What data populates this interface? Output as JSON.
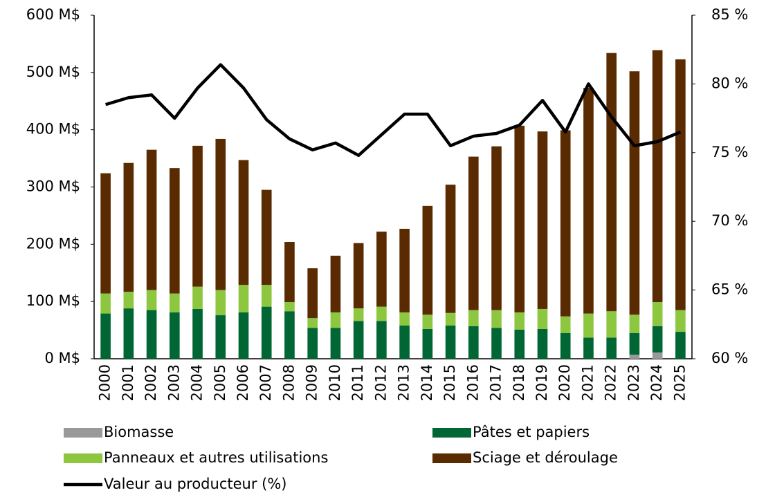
{
  "chart_data": {
    "type": "bar",
    "stacked": true,
    "categories": [
      "2000",
      "2001",
      "2002",
      "2003",
      "2004",
      "2005",
      "2006",
      "2007",
      "2008",
      "2009",
      "2010",
      "2011",
      "2012",
      "2013",
      "2014",
      "2015",
      "2016",
      "2017",
      "2018",
      "2019",
      "2020",
      "2021",
      "2022",
      "2023",
      "2024",
      "2025"
    ],
    "series": [
      {
        "name": "Biomasse",
        "color": "#999999",
        "values": [
          0,
          0,
          0,
          0,
          0,
          0,
          0,
          0,
          0,
          0,
          0,
          0,
          0,
          0,
          0,
          0,
          0,
          0,
          0,
          0,
          0,
          0,
          0,
          7,
          11,
          0
        ]
      },
      {
        "name": "Pâtes et papiers",
        "color": "#006633",
        "values": [
          79,
          88,
          85,
          81,
          87,
          76,
          81,
          91,
          83,
          54,
          54,
          66,
          66,
          58,
          52,
          58,
          57,
          54,
          51,
          52,
          45,
          37,
          37,
          38,
          46,
          47
        ]
      },
      {
        "name": "Panneaux et autres utilisations",
        "color": "#8dc63f",
        "values": [
          35,
          29,
          35,
          33,
          39,
          44,
          48,
          38,
          16,
          17,
          27,
          22,
          25,
          23,
          25,
          22,
          28,
          31,
          30,
          35,
          29,
          42,
          46,
          32,
          42,
          38
        ]
      },
      {
        "name": "Sciage et déroulage",
        "color": "#5a2a00",
        "values": [
          210,
          225,
          245,
          219,
          246,
          264,
          218,
          166,
          105,
          87,
          99,
          114,
          131,
          146,
          190,
          224,
          268,
          286,
          326,
          310,
          325,
          394,
          451,
          425,
          440,
          438
        ]
      },
      {
        "name": "Valeur au producteur (%)",
        "color": "#000000",
        "type": "line",
        "axis": "y2",
        "values": [
          78.5,
          79.0,
          79.2,
          77.5,
          79.7,
          81.4,
          79.7,
          77.4,
          76.0,
          75.2,
          75.7,
          74.8,
          76.3,
          77.8,
          77.8,
          75.5,
          76.2,
          76.4,
          77.0,
          78.8,
          76.5,
          80.0,
          77.6,
          75.5,
          75.8,
          76.5
        ]
      }
    ],
    "ylim": [
      0,
      600
    ],
    "yticks": [
      {
        "value": 0,
        "label": "0 M$"
      },
      {
        "value": 100,
        "label": "100 M$"
      },
      {
        "value": 200,
        "label": "200 M$"
      },
      {
        "value": 300,
        "label": "300 M$"
      },
      {
        "value": 400,
        "label": "400 M$"
      },
      {
        "value": 500,
        "label": "500 M$"
      },
      {
        "value": 600,
        "label": "600 M$"
      }
    ],
    "y2lim": [
      60,
      85
    ],
    "y2ticks": [
      {
        "value": 60,
        "label": "60 %"
      },
      {
        "value": 65,
        "label": "65 %"
      },
      {
        "value": 70,
        "label": "70 %"
      },
      {
        "value": 75,
        "label": "75 %"
      },
      {
        "value": 80,
        "label": "80 %"
      },
      {
        "value": 85,
        "label": "85 %"
      }
    ],
    "grid": false,
    "legend": "bottom"
  }
}
